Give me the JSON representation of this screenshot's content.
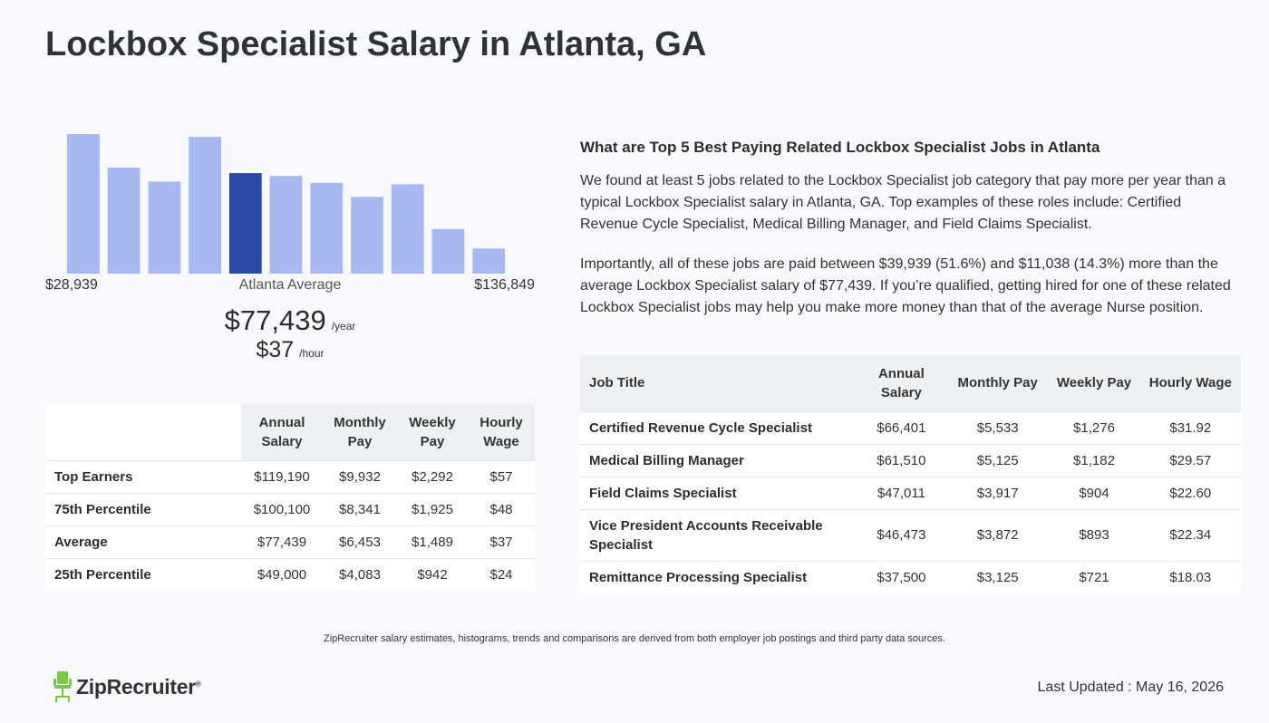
{
  "page_title": "Lockbox Specialist Salary in Atlanta, GA",
  "chart_data": {
    "type": "bar",
    "highlight_index": 4,
    "values": [
      100,
      76,
      66,
      98,
      72,
      70,
      65,
      55,
      64,
      32,
      18
    ],
    "bar_color": "#a8b8f0",
    "highlight_color": "#2a4aa5",
    "min_label": "$28,939",
    "mid_label": "Atlanta Average",
    "max_label": "$136,849"
  },
  "average": {
    "yearly": "$77,439",
    "yearly_unit": "/year",
    "hourly": "$37",
    "hourly_unit": "/hour"
  },
  "percentile_table": {
    "headers": [
      "Annual Salary",
      "Monthly Pay",
      "Weekly Pay",
      "Hourly Wage"
    ],
    "rows": [
      {
        "label": "Top Earners",
        "annual": "$119,190",
        "monthly": "$9,932",
        "weekly": "$2,292",
        "hourly": "$57"
      },
      {
        "label": "75th Percentile",
        "annual": "$100,100",
        "monthly": "$8,341",
        "weekly": "$1,925",
        "hourly": "$48"
      },
      {
        "label": "Average",
        "annual": "$77,439",
        "monthly": "$6,453",
        "weekly": "$1,489",
        "hourly": "$37"
      },
      {
        "label": "25th Percentile",
        "annual": "$49,000",
        "monthly": "$4,083",
        "weekly": "$942",
        "hourly": "$24"
      }
    ]
  },
  "related_jobs": {
    "heading": "What are Top 5 Best Paying Related Lockbox Specialist Jobs in Atlanta",
    "paragraph1": "We found at least 5 jobs related to the Lockbox Specialist job category that pay more per year than a typical Lockbox Specialist salary in Atlanta, GA. Top examples of these roles include: Certified Revenue Cycle Specialist, Medical Billing Manager, and Field Claims Specialist.",
    "paragraph2": "Importantly, all of these jobs are paid between $39,939 (51.6%) and $11,038 (14.3%) more than the average Lockbox Specialist salary of $77,439. If you’re qualified, getting hired for one of these related Lockbox Specialist jobs may help you make more money than that of the average Nurse position.",
    "headers": [
      "Job Title",
      "Annual Salary",
      "Monthly Pay",
      "Weekly Pay",
      "Hourly Wage"
    ],
    "rows": [
      {
        "title": "Certified Revenue Cycle Specialist",
        "annual": "$66,401",
        "monthly": "$5,533",
        "weekly": "$1,276",
        "hourly": "$31.92"
      },
      {
        "title": "Medical Billing Manager",
        "annual": "$61,510",
        "monthly": "$5,125",
        "weekly": "$1,182",
        "hourly": "$29.57"
      },
      {
        "title": "Field Claims Specialist",
        "annual": "$47,011",
        "monthly": "$3,917",
        "weekly": "$904",
        "hourly": "$22.60"
      },
      {
        "title": "Vice President Accounts Receivable Specialist",
        "annual": "$46,473",
        "monthly": "$3,872",
        "weekly": "$893",
        "hourly": "$22.34"
      },
      {
        "title": "Remittance Processing Specialist",
        "annual": "$37,500",
        "monthly": "$3,125",
        "weekly": "$721",
        "hourly": "$18.03"
      }
    ]
  },
  "disclaimer": "ZipRecruiter salary estimates, histograms, trends and comparisons are derived from both employer job postings and third party data sources.",
  "footer": {
    "logo_text": "ZipRecruiter",
    "logo_mark": "®",
    "updated": "Last Updated : May 16, 2026"
  },
  "colors": {
    "logo_green": "#7ac943"
  }
}
